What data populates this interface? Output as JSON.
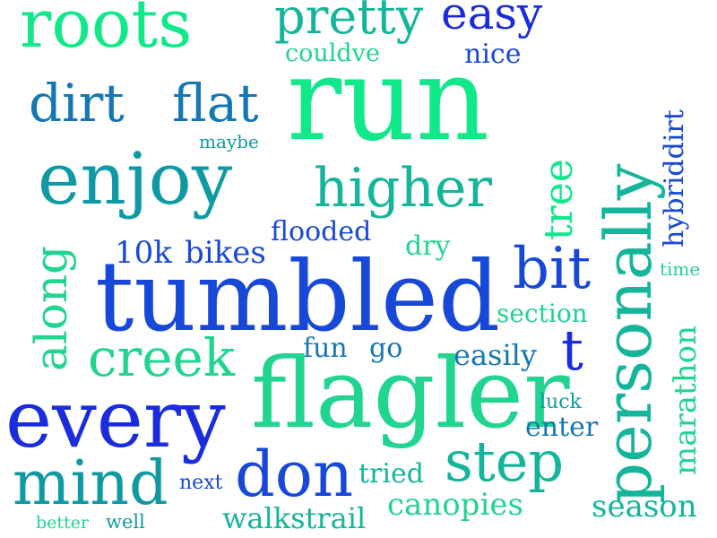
{
  "colors": {
    "background": "#ffffff",
    "mint": "#10e88a",
    "light_green": "#21d48f",
    "teal": "#14b59a",
    "dark_teal": "#0f9aa3",
    "steel_blue": "#1477b4",
    "royal_blue": "#1848d8",
    "deep_blue": "#1a2cdc"
  },
  "words": [
    {
      "text": "roots",
      "tone": "mint"
    },
    {
      "text": "pretty",
      "tone": "teal"
    },
    {
      "text": "easy",
      "tone": "deep_blue"
    },
    {
      "text": "couldve",
      "tone": "light_green"
    },
    {
      "text": "nice",
      "tone": "royal_blue"
    },
    {
      "text": "run",
      "tone": "mint"
    },
    {
      "text": "personally",
      "tone": "teal"
    },
    {
      "text": "dirt",
      "tone": "steel_blue"
    },
    {
      "text": "flat",
      "tone": "steel_blue"
    },
    {
      "text": "maybe",
      "tone": "dark_teal"
    },
    {
      "text": "hybriddirt",
      "tone": "royal_blue"
    },
    {
      "text": "enjoy",
      "tone": "dark_teal"
    },
    {
      "text": "higher",
      "tone": "teal"
    },
    {
      "text": "tree",
      "tone": "mint"
    },
    {
      "text": "flooded",
      "tone": "royal_blue"
    },
    {
      "text": "along",
      "tone": "light_green"
    },
    {
      "text": "10k",
      "tone": "royal_blue"
    },
    {
      "text": "bikes",
      "tone": "royal_blue"
    },
    {
      "text": "dry",
      "tone": "light_green"
    },
    {
      "text": "bit",
      "tone": "royal_blue"
    },
    {
      "text": "time",
      "tone": "light_green"
    },
    {
      "text": "tumbled",
      "tone": "royal_blue"
    },
    {
      "text": "section",
      "tone": "light_green"
    },
    {
      "text": "marathon",
      "tone": "light_green"
    },
    {
      "text": "creek",
      "tone": "light_green"
    },
    {
      "text": "fun",
      "tone": "steel_blue"
    },
    {
      "text": "go",
      "tone": "steel_blue"
    },
    {
      "text": "easily",
      "tone": "steel_blue"
    },
    {
      "text": "t",
      "tone": "deep_blue"
    },
    {
      "text": "flagler",
      "tone": "light_green"
    },
    {
      "text": "every",
      "tone": "deep_blue"
    },
    {
      "text": "luck",
      "tone": "dark_teal"
    },
    {
      "text": "enter",
      "tone": "steel_blue"
    },
    {
      "text": "mind",
      "tone": "dark_teal"
    },
    {
      "text": "next",
      "tone": "royal_blue"
    },
    {
      "text": "don",
      "tone": "royal_blue"
    },
    {
      "text": "tried",
      "tone": "teal"
    },
    {
      "text": "step",
      "tone": "teal"
    },
    {
      "text": "canopies",
      "tone": "light_green"
    },
    {
      "text": "season",
      "tone": "teal"
    },
    {
      "text": "better",
      "tone": "light_green"
    },
    {
      "text": "well",
      "tone": "dark_teal"
    },
    {
      "text": "walkstrail",
      "tone": "teal"
    }
  ]
}
